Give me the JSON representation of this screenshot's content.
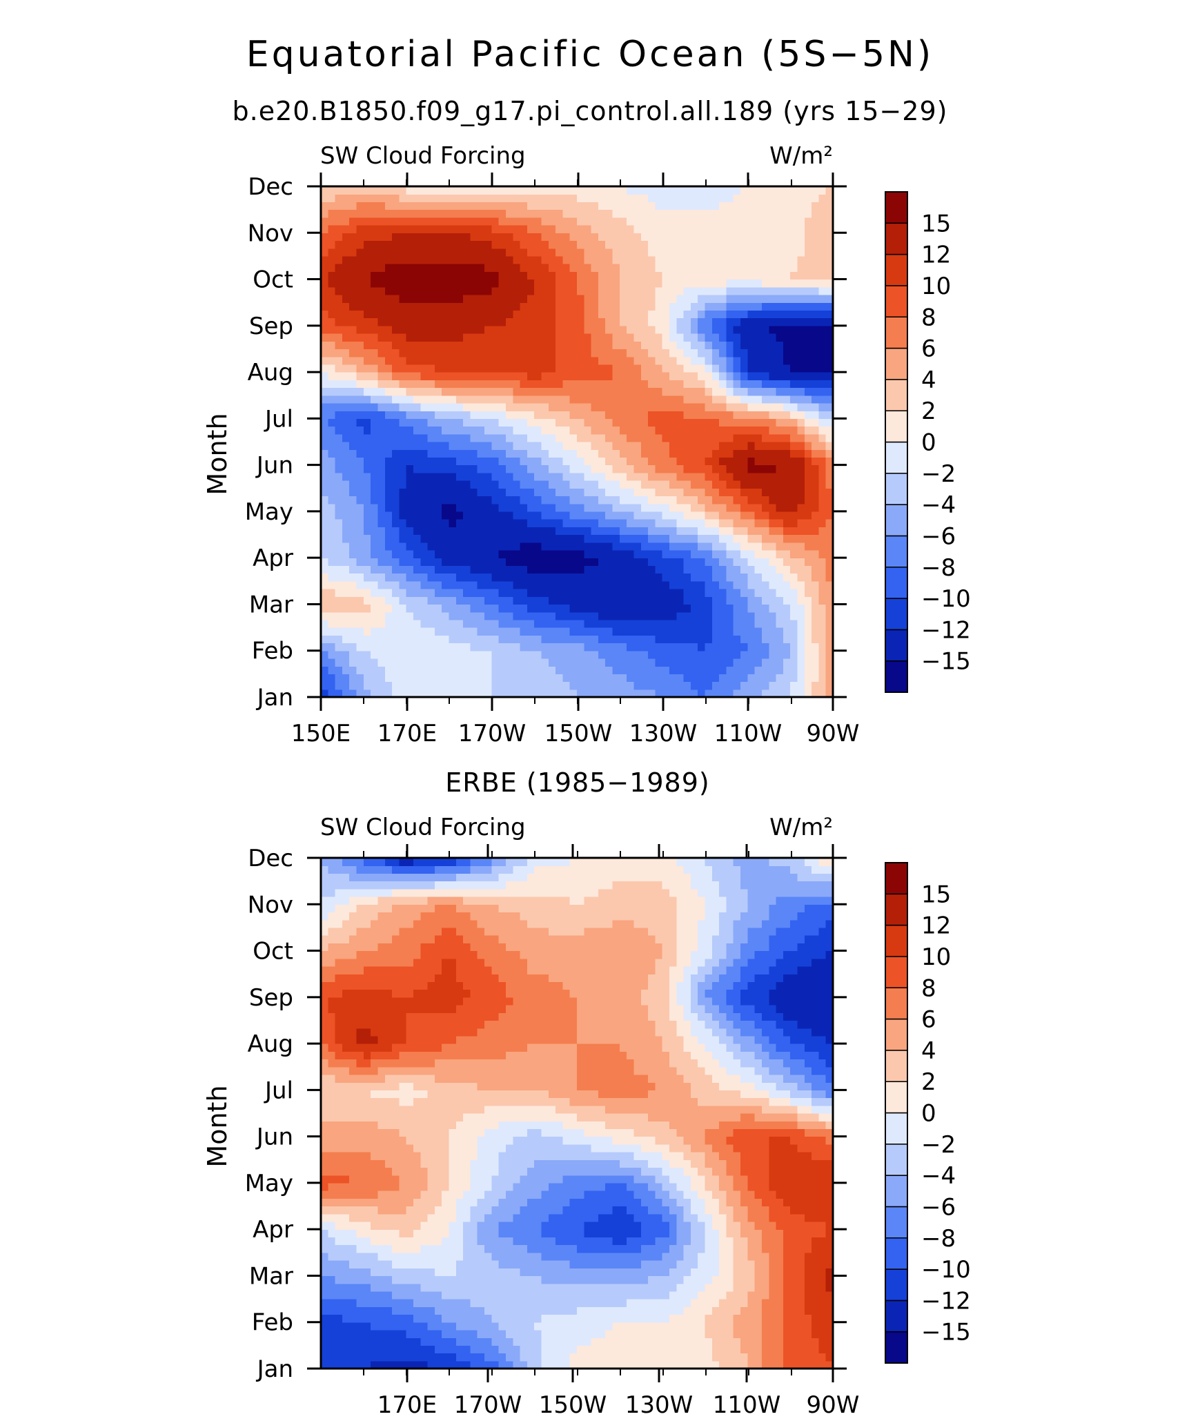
{
  "figure": {
    "title": "Equatorial Pacific Ocean (5S−5N)",
    "subtitle": "b.e20.B1850.f09_g17.pi_control.all.189 (yrs 15−29)"
  },
  "colors": {
    "levels": [
      "#08088a",
      "#0a25b5",
      "#1541d8",
      "#3363f0",
      "#5a86f7",
      "#8ba9f9",
      "#b6cbfb",
      "#dfe9fd",
      "#fde8dc",
      "#fbc8ad",
      "#f9a57f",
      "#f47e4f",
      "#ec5326",
      "#d73a10",
      "#b41f08",
      "#8c0505"
    ]
  },
  "chart_data": [
    {
      "type": "heatmap",
      "title": "",
      "panel_label_left": "SW Cloud Forcing",
      "units": "W/m²",
      "ylabel": "Month",
      "x_tick_labels": [
        "150E",
        "170E",
        "170W",
        "150W",
        "130W",
        "110W",
        "90W"
      ],
      "y_tick_labels": [
        "Jan",
        "Feb",
        "Mar",
        "Apr",
        "May",
        "Jun",
        "Jul",
        "Aug",
        "Sep",
        "Oct",
        "Nov",
        "Dec"
      ],
      "colorbar_labels": [
        "15",
        "12",
        "10",
        "8",
        "6",
        "4",
        "2",
        "0",
        "−2",
        "−4",
        "−6",
        "−8",
        "−10",
        "−12",
        "−15"
      ],
      "levels": [
        -15,
        -12,
        -10,
        -8,
        -6,
        -4,
        -2,
        0,
        2,
        4,
        6,
        8,
        10,
        12,
        15
      ],
      "x": [
        150,
        160,
        170,
        180,
        190,
        200,
        210,
        220,
        230,
        240,
        250,
        260,
        270
      ],
      "y": [
        1,
        2,
        3,
        4,
        5,
        6,
        7,
        8,
        9,
        10,
        11,
        12
      ],
      "z": [
        [
          -12,
          -5,
          -1,
          -2,
          -2,
          -3,
          -4,
          -5,
          -6,
          -8,
          -5,
          -2,
          5
        ],
        [
          -6,
          -2,
          0,
          -1,
          -2,
          -4,
          -5,
          -7,
          -9,
          -10,
          -8,
          -4,
          6
        ],
        [
          4,
          3,
          -2,
          -5,
          -8,
          -11,
          -13,
          -15,
          -14,
          -11,
          -6,
          -2,
          6
        ],
        [
          -2,
          -5,
          -9,
          -13,
          -15,
          -17,
          -16,
          -14,
          -11,
          -8,
          -2,
          3,
          7
        ],
        [
          -3,
          -6,
          -13,
          -16,
          -13,
          -10,
          -7,
          -4,
          -1,
          3,
          8,
          13,
          8
        ],
        [
          -5,
          -8,
          -12,
          -11,
          -9,
          -5,
          -1,
          3,
          7,
          10,
          16,
          15,
          7
        ],
        [
          -8,
          -11,
          -7,
          -4,
          -2,
          1,
          4,
          7,
          9,
          8,
          7,
          4,
          -3
        ],
        [
          0,
          4,
          9,
          10,
          10,
          11,
          9,
          8,
          4,
          1,
          -12,
          -15,
          -15
        ],
        [
          9,
          11,
          13,
          13,
          12,
          11,
          9,
          4,
          1,
          -8,
          -14,
          -16,
          -16
        ],
        [
          12,
          15,
          17,
          17,
          16,
          12,
          8,
          4,
          2,
          1,
          1,
          2,
          3
        ],
        [
          8,
          11,
          12,
          12,
          11,
          8,
          5,
          3,
          1,
          1,
          1,
          1,
          4
        ],
        [
          2,
          3,
          1,
          0,
          0,
          1,
          1,
          0,
          -1,
          -1,
          0,
          1,
          2
        ]
      ]
    },
    {
      "type": "heatmap",
      "title": "ERBE (1985−1989)",
      "panel_label_left": "SW Cloud Forcing",
      "units": "W/m²",
      "ylabel": "Month",
      "x_tick_labels": [
        "170E",
        "170W",
        "150W",
        "130W",
        "110W",
        "90W"
      ],
      "y_tick_labels": [
        "Jan",
        "Feb",
        "Mar",
        "Apr",
        "May",
        "Jun",
        "Jul",
        "Aug",
        "Sep",
        "Oct",
        "Nov",
        "Dec"
      ],
      "colorbar_labels": [
        "15",
        "12",
        "10",
        "8",
        "6",
        "4",
        "2",
        "0",
        "−2",
        "−4",
        "−6",
        "−8",
        "−10",
        "−12",
        "−15"
      ],
      "levels": [
        -15,
        -12,
        -10,
        -8,
        -6,
        -4,
        -2,
        0,
        2,
        4,
        6,
        8,
        10,
        12,
        15
      ],
      "x": [
        150,
        160,
        170,
        180,
        190,
        200,
        210,
        220,
        230,
        240,
        250,
        260,
        270
      ],
      "y": [
        1,
        2,
        3,
        4,
        5,
        6,
        7,
        8,
        9,
        10,
        11,
        12
      ],
      "z": [
        [
          -12,
          -12,
          -13,
          -12,
          -9,
          -3,
          1,
          1,
          0,
          1,
          4,
          9,
          10
        ],
        [
          -11,
          -10,
          -9,
          -6,
          -4,
          -2,
          -1,
          0,
          0,
          2,
          5,
          9,
          11
        ],
        [
          -6,
          -5,
          -3,
          -2,
          -3,
          -4,
          -5,
          -5,
          -4,
          -1,
          3,
          9,
          13
        ],
        [
          -2,
          1,
          3,
          0,
          -6,
          -8,
          -10,
          -12,
          -9,
          -2,
          5,
          9,
          10
        ],
        [
          9,
          8,
          6,
          2,
          -2,
          -5,
          -7,
          -8,
          -4,
          2,
          8,
          12,
          12
        ],
        [
          5,
          5,
          4,
          2,
          -1,
          -3,
          -1,
          1,
          3,
          6,
          10,
          10,
          7
        ],
        [
          2,
          2,
          1,
          3,
          4,
          4,
          6,
          7,
          6,
          3,
          1,
          -3,
          -8
        ],
        [
          8,
          13,
          10,
          8,
          7,
          6,
          6,
          6,
          4,
          0,
          -5,
          -10,
          -12
        ],
        [
          10,
          11,
          10,
          11,
          9,
          7,
          6,
          5,
          3,
          -6,
          -11,
          -14,
          -15
        ],
        [
          4,
          6,
          7,
          10,
          7,
          5,
          5,
          6,
          4,
          -1,
          -7,
          -10,
          -12
        ],
        [
          -2,
          2,
          5,
          6,
          4,
          3,
          2,
          3,
          3,
          0,
          -4,
          -7,
          -9
        ],
        [
          -4,
          -9,
          -14,
          -12,
          -7,
          -1,
          0,
          1,
          1,
          -2,
          -5,
          -3,
          3
        ]
      ]
    }
  ]
}
